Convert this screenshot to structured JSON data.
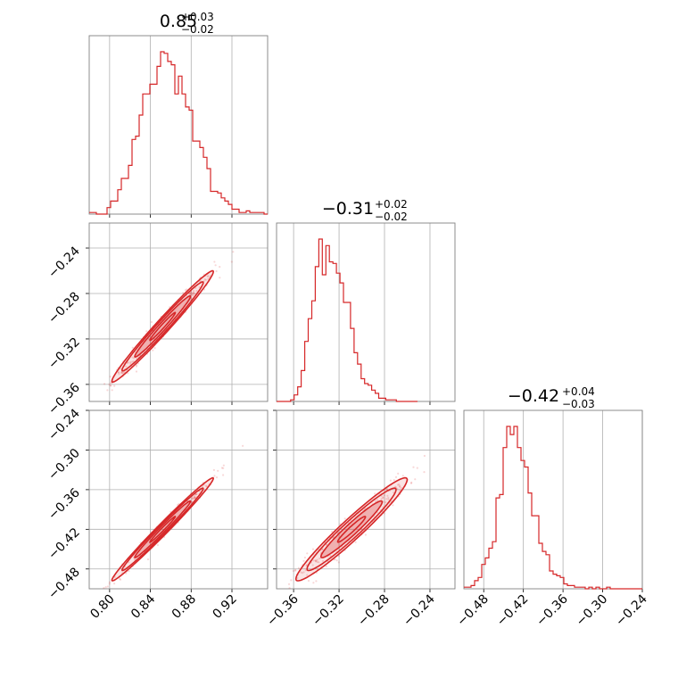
{
  "chart_data": {
    "type": "corner",
    "color": "#d62728",
    "grid": true,
    "parameters": [
      {
        "index": 0,
        "title": {
          "main": "0.85",
          "sup": "+0.03",
          "sub": "−0.02"
        },
        "range": [
          0.78,
          0.955
        ],
        "ticks": [
          0.8,
          0.84,
          0.88,
          0.92
        ],
        "tick_labels": [
          "0.80",
          "0.84",
          "0.88",
          "0.92"
        ]
      },
      {
        "index": 1,
        "title": {
          "main": "−0.31",
          "sup": "+0.02",
          "sub": "−0.02"
        },
        "range": [
          -0.375,
          -0.218
        ],
        "ticks": [
          -0.36,
          -0.32,
          -0.28,
          -0.24
        ],
        "tick_labels": [
          "−0.36",
          "−0.32",
          "−0.28",
          "−0.24"
        ]
      },
      {
        "index": 2,
        "title": {
          "main": "−0.42",
          "sup": "+0.04",
          "sub": "−0.03"
        },
        "range": [
          -0.51,
          -0.24
        ],
        "ticks": [
          -0.48,
          -0.42,
          -0.36,
          -0.3,
          -0.24
        ],
        "tick_labels": [
          "−0.48",
          "−0.42",
          "−0.36",
          "−0.30",
          "−0.24"
        ]
      }
    ],
    "histograms": [
      {
        "param": 0,
        "bin_start": 0.78,
        "bin_width": 0.0035,
        "ymax": 1.0,
        "counts": [
          0.01,
          0.01,
          0,
          0,
          0,
          0.04,
          0.08,
          0.08,
          0.15,
          0.22,
          0.22,
          0.3,
          0.46,
          0.48,
          0.61,
          0.74,
          0.74,
          0.8,
          0.8,
          0.91,
          1.0,
          0.99,
          0.94,
          0.92,
          0.74,
          0.85,
          0.74,
          0.66,
          0.64,
          0.45,
          0.45,
          0.41,
          0.35,
          0.28,
          0.14,
          0.14,
          0.13,
          0.1,
          0.08,
          0.06,
          0.03,
          0.03,
          0.01,
          0.01,
          0.02,
          0.01,
          0.01,
          0.01,
          0.01,
          0
        ]
      },
      {
        "param": 1,
        "bin_start": -0.375,
        "bin_width": 0.0031,
        "ymax": 1.0,
        "counts": [
          0.0,
          0.0,
          0.0,
          0.0,
          0.01,
          0.04,
          0.09,
          0.19,
          0.37,
          0.51,
          0.62,
          0.83,
          1.0,
          0.78,
          0.96,
          0.86,
          0.85,
          0.79,
          0.73,
          0.61,
          0.61,
          0.45,
          0.3,
          0.23,
          0.14,
          0.11,
          0.1,
          0.07,
          0.05,
          0.02,
          0.02,
          0.01,
          0.01,
          0.01,
          0,
          0,
          0,
          0,
          0,
          0
        ]
      },
      {
        "param": 2,
        "bin_start": -0.51,
        "bin_width": 0.0054,
        "ymax": 1.0,
        "counts": [
          0.01,
          0.01,
          0.02,
          0.05,
          0.07,
          0.15,
          0.19,
          0.25,
          0.29,
          0.56,
          0.58,
          0.87,
          1.0,
          0.95,
          1.0,
          0.87,
          0.79,
          0.75,
          0.59,
          0.45,
          0.45,
          0.28,
          0.23,
          0.21,
          0.11,
          0.09,
          0.08,
          0.07,
          0.03,
          0.02,
          0.02,
          0.01,
          0.01,
          0.01,
          0,
          0.01,
          0,
          0.01,
          0,
          0,
          0.01,
          0,
          0,
          0,
          0,
          0,
          0,
          0,
          0,
          0
        ]
      }
    ],
    "scatter_2d": [
      {
        "x_param": 0,
        "y_param": 1,
        "cov": [
          [
            0.00062,
            0.0006
          ],
          [
            0.0006,
            0.0006
          ]
        ],
        "mean": [
          0.852,
          -0.309
        ]
      },
      {
        "x_param": 0,
        "y_param": 2,
        "cov": [
          [
            0.00062,
            0.00096
          ],
          [
            0.00096,
            0.00152
          ]
        ],
        "mean": [
          0.852,
          -0.42
        ]
      },
      {
        "x_param": 1,
        "y_param": 2,
        "cov": [
          [
            0.0006,
            0.00092
          ],
          [
            0.00092,
            0.00152
          ]
        ],
        "mean": [
          -0.309,
          -0.42
        ]
      }
    ]
  }
}
